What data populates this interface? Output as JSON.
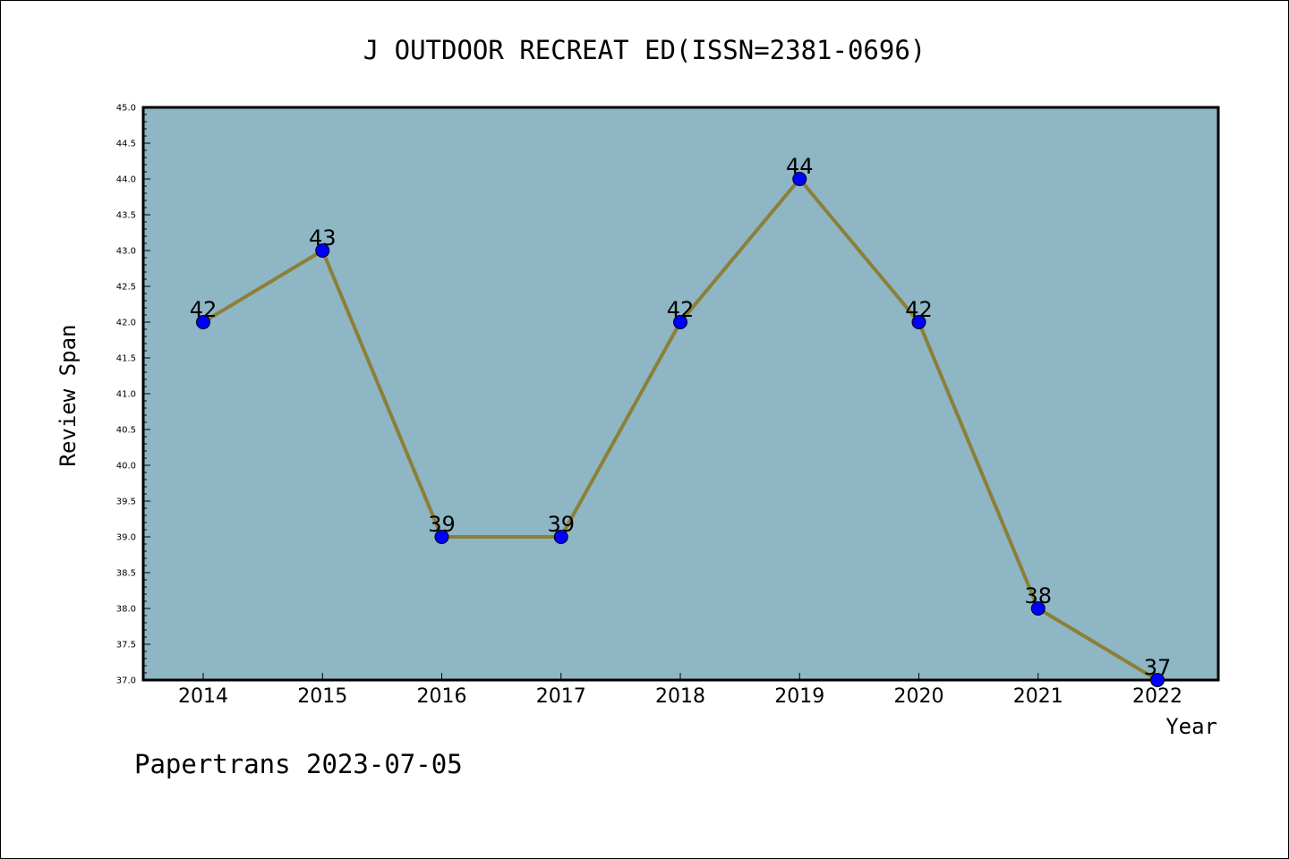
{
  "chart_data": {
    "type": "line",
    "title": "J OUTDOOR RECREAT ED(ISSN=2381-0696)",
    "xlabel": "Year",
    "ylabel": "Review Span",
    "categories": [
      "2014",
      "2015",
      "2016",
      "2017",
      "2018",
      "2019",
      "2020",
      "2021",
      "2022"
    ],
    "values": [
      42,
      43,
      39,
      39,
      42,
      44,
      42,
      38,
      37
    ],
    "data_labels": [
      "42",
      "43",
      "39",
      "39",
      "42",
      "44",
      "42",
      "38",
      "37"
    ],
    "ylim": [
      37.0,
      45.0
    ],
    "yticks": [
      "37.0",
      "37.5",
      "38.0",
      "38.5",
      "39.0",
      "39.5",
      "40.0",
      "40.5",
      "41.0",
      "41.5",
      "42.0",
      "42.5",
      "43.0",
      "43.5",
      "44.0",
      "44.5",
      "45.0"
    ],
    "grid": false,
    "colors": {
      "plot_background": "#8eb6c4",
      "line": "#8c7f37",
      "marker": "#0000ff"
    }
  },
  "footer": "Papertrans 2023-07-05"
}
